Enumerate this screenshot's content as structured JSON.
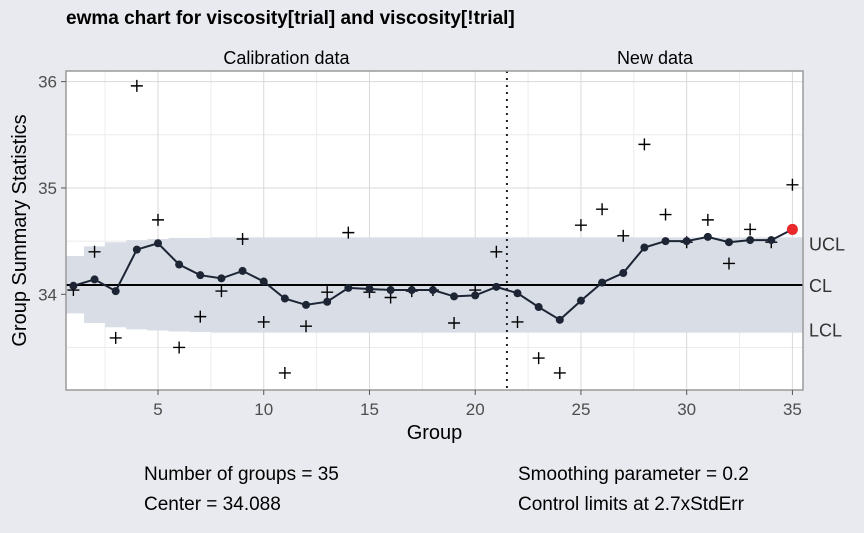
{
  "title": "ewma chart for viscosity[trial] and viscosity[!trial]",
  "footer": {
    "groups": "Number of groups = 35",
    "center": "Center = 34.088",
    "smoothing": "Smoothing parameter = 0.2",
    "limits": "Control limits at 2.7xStdErr"
  },
  "chart_data": {
    "type": "line",
    "title": "ewma chart for viscosity[trial] and viscosity[!trial]",
    "xlabel": "Group",
    "ylabel": "Group Summary Statistics",
    "xlim": [
      0.65,
      35.5
    ],
    "ylim": [
      33.1,
      36.1
    ],
    "x_ticks": [
      5,
      10,
      15,
      20,
      25,
      30,
      35
    ],
    "y_ticks": [
      34,
      35,
      36
    ],
    "grid": true,
    "phase_labels": [
      "Calibration data",
      "New data"
    ],
    "phase_split": 21.5,
    "center": 34.088,
    "center_label": "CL",
    "ucl_label": "UCL",
    "lcl_label": "LCL",
    "ucl": [
      34.36,
      34.45,
      34.49,
      34.51,
      34.52,
      34.53,
      34.53,
      34.535,
      34.535,
      34.535,
      34.535,
      34.535,
      34.535,
      34.535,
      34.535,
      34.535,
      34.535,
      34.535,
      34.535,
      34.535,
      34.535,
      34.535,
      34.535,
      34.535,
      34.535,
      34.535,
      34.535,
      34.535,
      34.535,
      34.535,
      34.535,
      34.535,
      34.535,
      34.535,
      34.535
    ],
    "lcl": [
      33.82,
      33.73,
      33.69,
      33.67,
      33.66,
      33.65,
      33.645,
      33.64,
      33.64,
      33.64,
      33.64,
      33.64,
      33.64,
      33.64,
      33.64,
      33.64,
      33.64,
      33.64,
      33.64,
      33.64,
      33.64,
      33.64,
      33.64,
      33.64,
      33.64,
      33.64,
      33.64,
      33.64,
      33.64,
      33.64,
      33.64,
      33.64,
      33.64,
      33.64,
      33.64
    ],
    "statistics": [
      34.04,
      34.4,
      33.59,
      35.96,
      34.7,
      33.5,
      33.79,
      34.03,
      34.52,
      33.74,
      33.26,
      33.7,
      34.02,
      34.58,
      34.02,
      33.97,
      34.03,
      34.04,
      33.73,
      34.04,
      34.4,
      33.74,
      33.4,
      33.26,
      34.65,
      34.8,
      34.55,
      35.41,
      34.75,
      34.49,
      34.7,
      34.29,
      34.61,
      34.49,
      35.03
    ],
    "ewma": [
      34.08,
      34.14,
      34.03,
      34.42,
      34.48,
      34.28,
      34.18,
      34.15,
      34.22,
      34.12,
      33.96,
      33.9,
      33.93,
      34.06,
      34.05,
      34.04,
      34.04,
      34.04,
      33.98,
      33.99,
      34.07,
      34.01,
      33.88,
      33.76,
      33.94,
      34.11,
      34.2,
      34.44,
      34.5,
      34.5,
      34.54,
      34.49,
      34.51,
      34.51,
      34.61
    ],
    "violations": [
      35
    ],
    "colors": {
      "band": "#d8dde6",
      "line": "#1d2535",
      "violation": "#e8282b",
      "panel": "#ffffff",
      "background": "#e9eaef"
    }
  }
}
